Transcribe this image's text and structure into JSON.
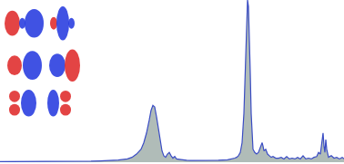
{
  "chart_data": {
    "type": "area",
    "x": [
      0,
      20,
      40,
      60,
      80,
      100,
      110,
      120,
      130,
      140,
      145,
      150,
      155,
      158,
      161,
      164,
      166,
      168,
      170,
      172,
      174,
      176,
      178,
      180,
      182,
      184,
      186,
      188,
      190,
      192,
      194,
      197,
      200,
      205,
      210,
      220,
      230,
      240,
      250,
      255,
      258,
      260,
      262,
      264,
      266,
      268,
      270,
      271,
      272,
      273,
      274,
      275,
      276,
      277,
      278,
      280,
      282,
      284,
      286,
      288,
      289,
      290,
      292,
      294,
      296,
      298,
      300,
      303,
      306,
      309,
      312,
      315,
      318,
      321,
      324,
      327,
      330,
      333,
      336,
      339,
      342,
      345,
      348,
      350,
      352,
      354,
      355,
      356,
      357,
      358,
      359,
      361,
      364,
      367,
      370,
      373,
      376,
      378
    ],
    "values": [
      0.3,
      0.3,
      0.4,
      0.4,
      0.5,
      0.6,
      0.8,
      1,
      1.3,
      2,
      3,
      5,
      8,
      12,
      18,
      26,
      32,
      35,
      34,
      28,
      20,
      12,
      7,
      4,
      3,
      5,
      6,
      4,
      2.5,
      3.5,
      2,
      1.8,
      1.5,
      1.2,
      1,
      1,
      1,
      1.2,
      1.5,
      2,
      2.5,
      3,
      4,
      6,
      12,
      30,
      70,
      92,
      100,
      96,
      80,
      55,
      30,
      15,
      8,
      6,
      5,
      6,
      9,
      12,
      10,
      7,
      8,
      5,
      4,
      3,
      3.5,
      2.5,
      2.5,
      3,
      2,
      3.5,
      2,
      2.5,
      2,
      3,
      2,
      4,
      2,
      2.5,
      2,
      3,
      3.5,
      6,
      5,
      14,
      18,
      10,
      6,
      14,
      8,
      3,
      4,
      2.5,
      3,
      2,
      3,
      2
    ],
    "color": "#3a4cc4",
    "xlim": [
      0,
      378
    ],
    "ylim": [
      0,
      100
    ],
    "grid": false,
    "tick_labels": false
  }
}
